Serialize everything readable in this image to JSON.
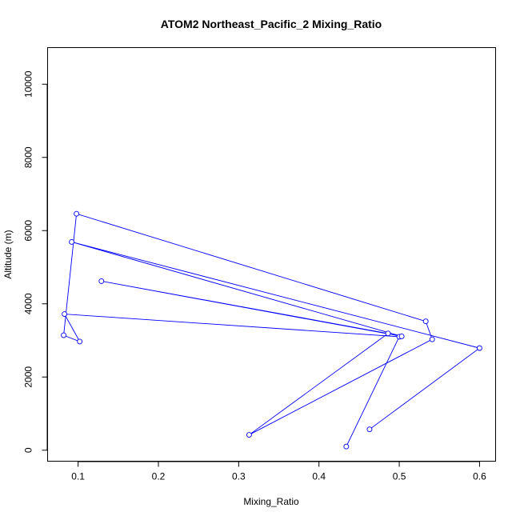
{
  "chart_data": {
    "type": "line",
    "title": "ATOM2 Northeast_Pacific_2 Mixing_Ratio",
    "xlabel": "Mixing_Ratio",
    "ylabel": "Altitude (m)",
    "xlim": [
      0.062,
      0.62
    ],
    "ylim": [
      -300,
      11000
    ],
    "xticks": [
      0.1,
      0.2,
      0.3,
      0.4,
      0.5,
      0.6
    ],
    "xtick_labels": [
      "0.1",
      "0.2",
      "0.3",
      "0.4",
      "0.5",
      "0.6"
    ],
    "yticks": [
      0,
      2000,
      4000,
      6000,
      8000,
      10000
    ],
    "ytick_labels": [
      "0",
      "2000",
      "4000",
      "6000",
      "8000",
      "10000"
    ],
    "grid": false,
    "series": [
      {
        "color": "#0000ff",
        "marker": "open-circle",
        "points": [
          {
            "x": 0.434,
            "y": 100
          },
          {
            "x": 0.5,
            "y": 3100
          },
          {
            "x": 0.083,
            "y": 3720
          },
          {
            "x": 0.102,
            "y": 2970
          },
          {
            "x": 0.082,
            "y": 3140
          },
          {
            "x": 0.098,
            "y": 6460
          },
          {
            "x": 0.533,
            "y": 3520
          },
          {
            "x": 0.541,
            "y": 3030
          },
          {
            "x": 0.313,
            "y": 420
          },
          {
            "x": 0.486,
            "y": 3190
          },
          {
            "x": 0.129,
            "y": 4620
          },
          {
            "x": 0.503,
            "y": 3110
          },
          {
            "x": 0.092,
            "y": 5690
          },
          {
            "x": 0.6,
            "y": 2790
          },
          {
            "x": 0.463,
            "y": 570
          }
        ]
      }
    ]
  }
}
